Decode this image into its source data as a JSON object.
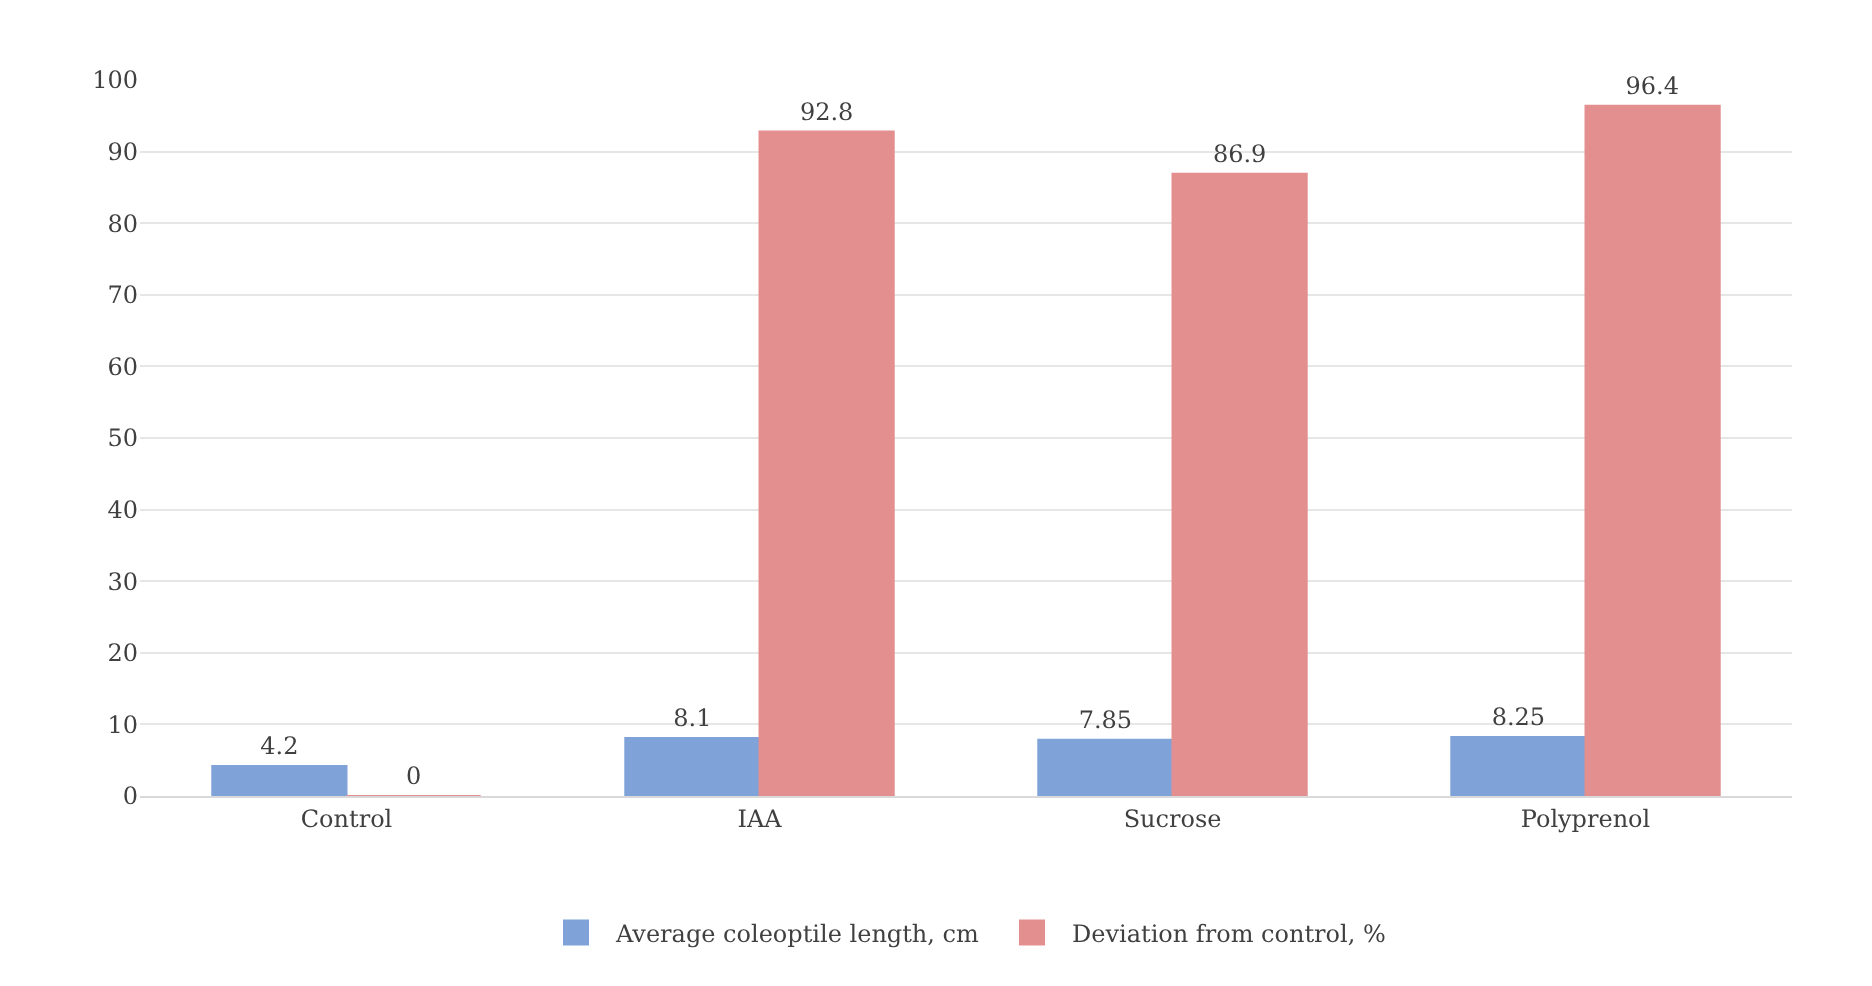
{
  "chart_data": {
    "type": "bar",
    "categories": [
      "Control",
      "IAA",
      "Sucrose",
      "Polyprenol"
    ],
    "series": [
      {
        "name": "Average coleoptile length, cm",
        "color": "#7fa3d9",
        "values": [
          4.2,
          8.1,
          7.85,
          8.25
        ]
      },
      {
        "name": "Deviation from control, %",
        "color": "#e48f8f",
        "values": [
          0,
          92.8,
          86.9,
          96.4
        ]
      }
    ],
    "ylim": [
      0,
      100
    ],
    "yticks": [
      0,
      10,
      20,
      30,
      40,
      50,
      60,
      70,
      80,
      90,
      100
    ],
    "grid": "y",
    "legend": "bottom",
    "data_labels": true
  }
}
